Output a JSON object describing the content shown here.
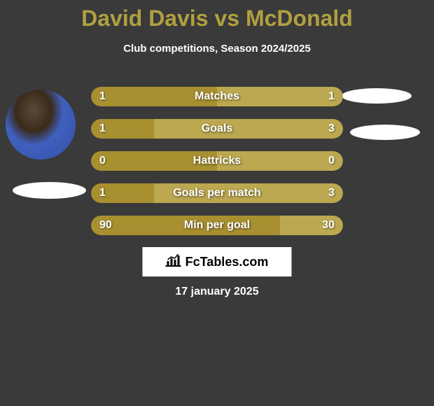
{
  "title": {
    "player1": "David Davis",
    "vs": "vs",
    "player2": "McDonald",
    "player1_color": "#b0a040",
    "vs_color": "#b0a040",
    "player2_color": "#b0a040",
    "fontsize": 32
  },
  "subtitle": {
    "text": "Club competitions, Season 2024/2025",
    "color": "#ffffff",
    "fontsize": 15
  },
  "background_color": "#3a3a3a",
  "colors": {
    "player1_bar": "#a89030",
    "player2_bar": "#bba850",
    "text": "#ffffff"
  },
  "stats": [
    {
      "label": "Matches",
      "left_value": "1",
      "right_value": "1",
      "left_pct": 50,
      "right_pct": 50
    },
    {
      "label": "Goals",
      "left_value": "1",
      "right_value": "3",
      "left_pct": 25,
      "right_pct": 75
    },
    {
      "label": "Hattricks",
      "left_value": "0",
      "right_value": "0",
      "left_pct": 50,
      "right_pct": 50
    },
    {
      "label": "Goals per match",
      "left_value": "1",
      "right_value": "3",
      "left_pct": 25,
      "right_pct": 75
    },
    {
      "label": "Min per goal",
      "left_value": "90",
      "right_value": "30",
      "left_pct": 75,
      "right_pct": 25
    }
  ],
  "watermark": {
    "text": "FcTables.com",
    "background": "#ffffff",
    "text_color": "#000000"
  },
  "date": {
    "text": "17 january 2025",
    "color": "#ffffff",
    "fontsize": 16
  }
}
